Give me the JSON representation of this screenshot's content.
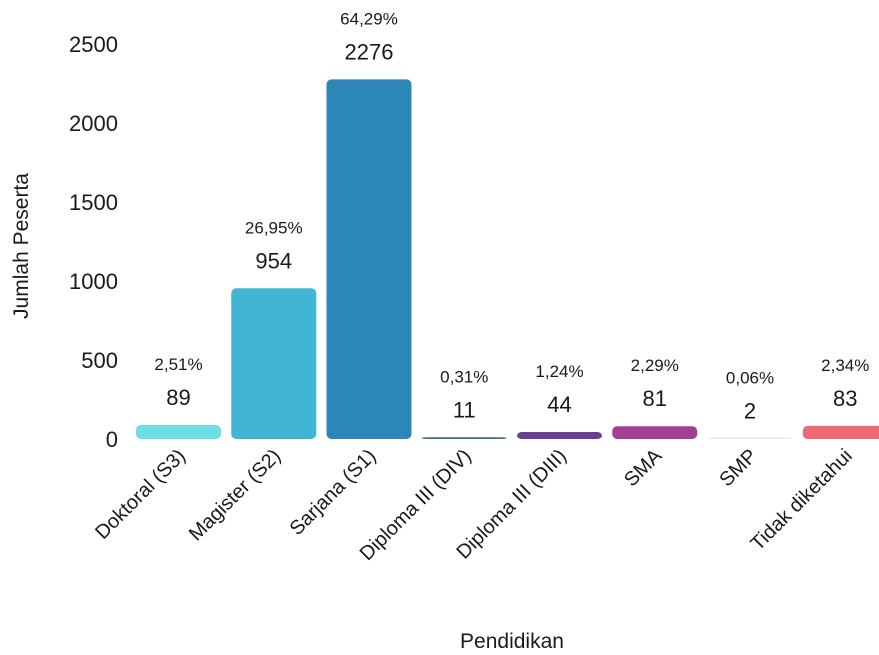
{
  "chart_data": {
    "type": "bar",
    "xlabel": "Pendidikan",
    "ylabel": "Jumlah Peserta",
    "ylim": [
      0,
      2500
    ],
    "yticks": [
      0,
      500,
      1000,
      1500,
      2000,
      2500
    ],
    "grid": false,
    "categories": [
      "Doktoral (S3)",
      "Magister (S2)",
      "Sarjana (S1)",
      "Diploma III (DIV)",
      "Diploma III (DIII)",
      "SMA",
      "SMP",
      "Tidak diketahui"
    ],
    "values": [
      89,
      954,
      2276,
      11,
      44,
      81,
      2,
      83
    ],
    "percent_labels": [
      "2,51%",
      "26,95%",
      "64,29%",
      "0,31%",
      "1,24%",
      "2,29%",
      "0,06%",
      "2,34%"
    ],
    "colors": [
      "#6ddfe6",
      "#40b5d4",
      "#2c86b8",
      "#3f6f8f",
      "#6a3f92",
      "#a43d96",
      "#ece4f0",
      "#ee6a73"
    ]
  }
}
